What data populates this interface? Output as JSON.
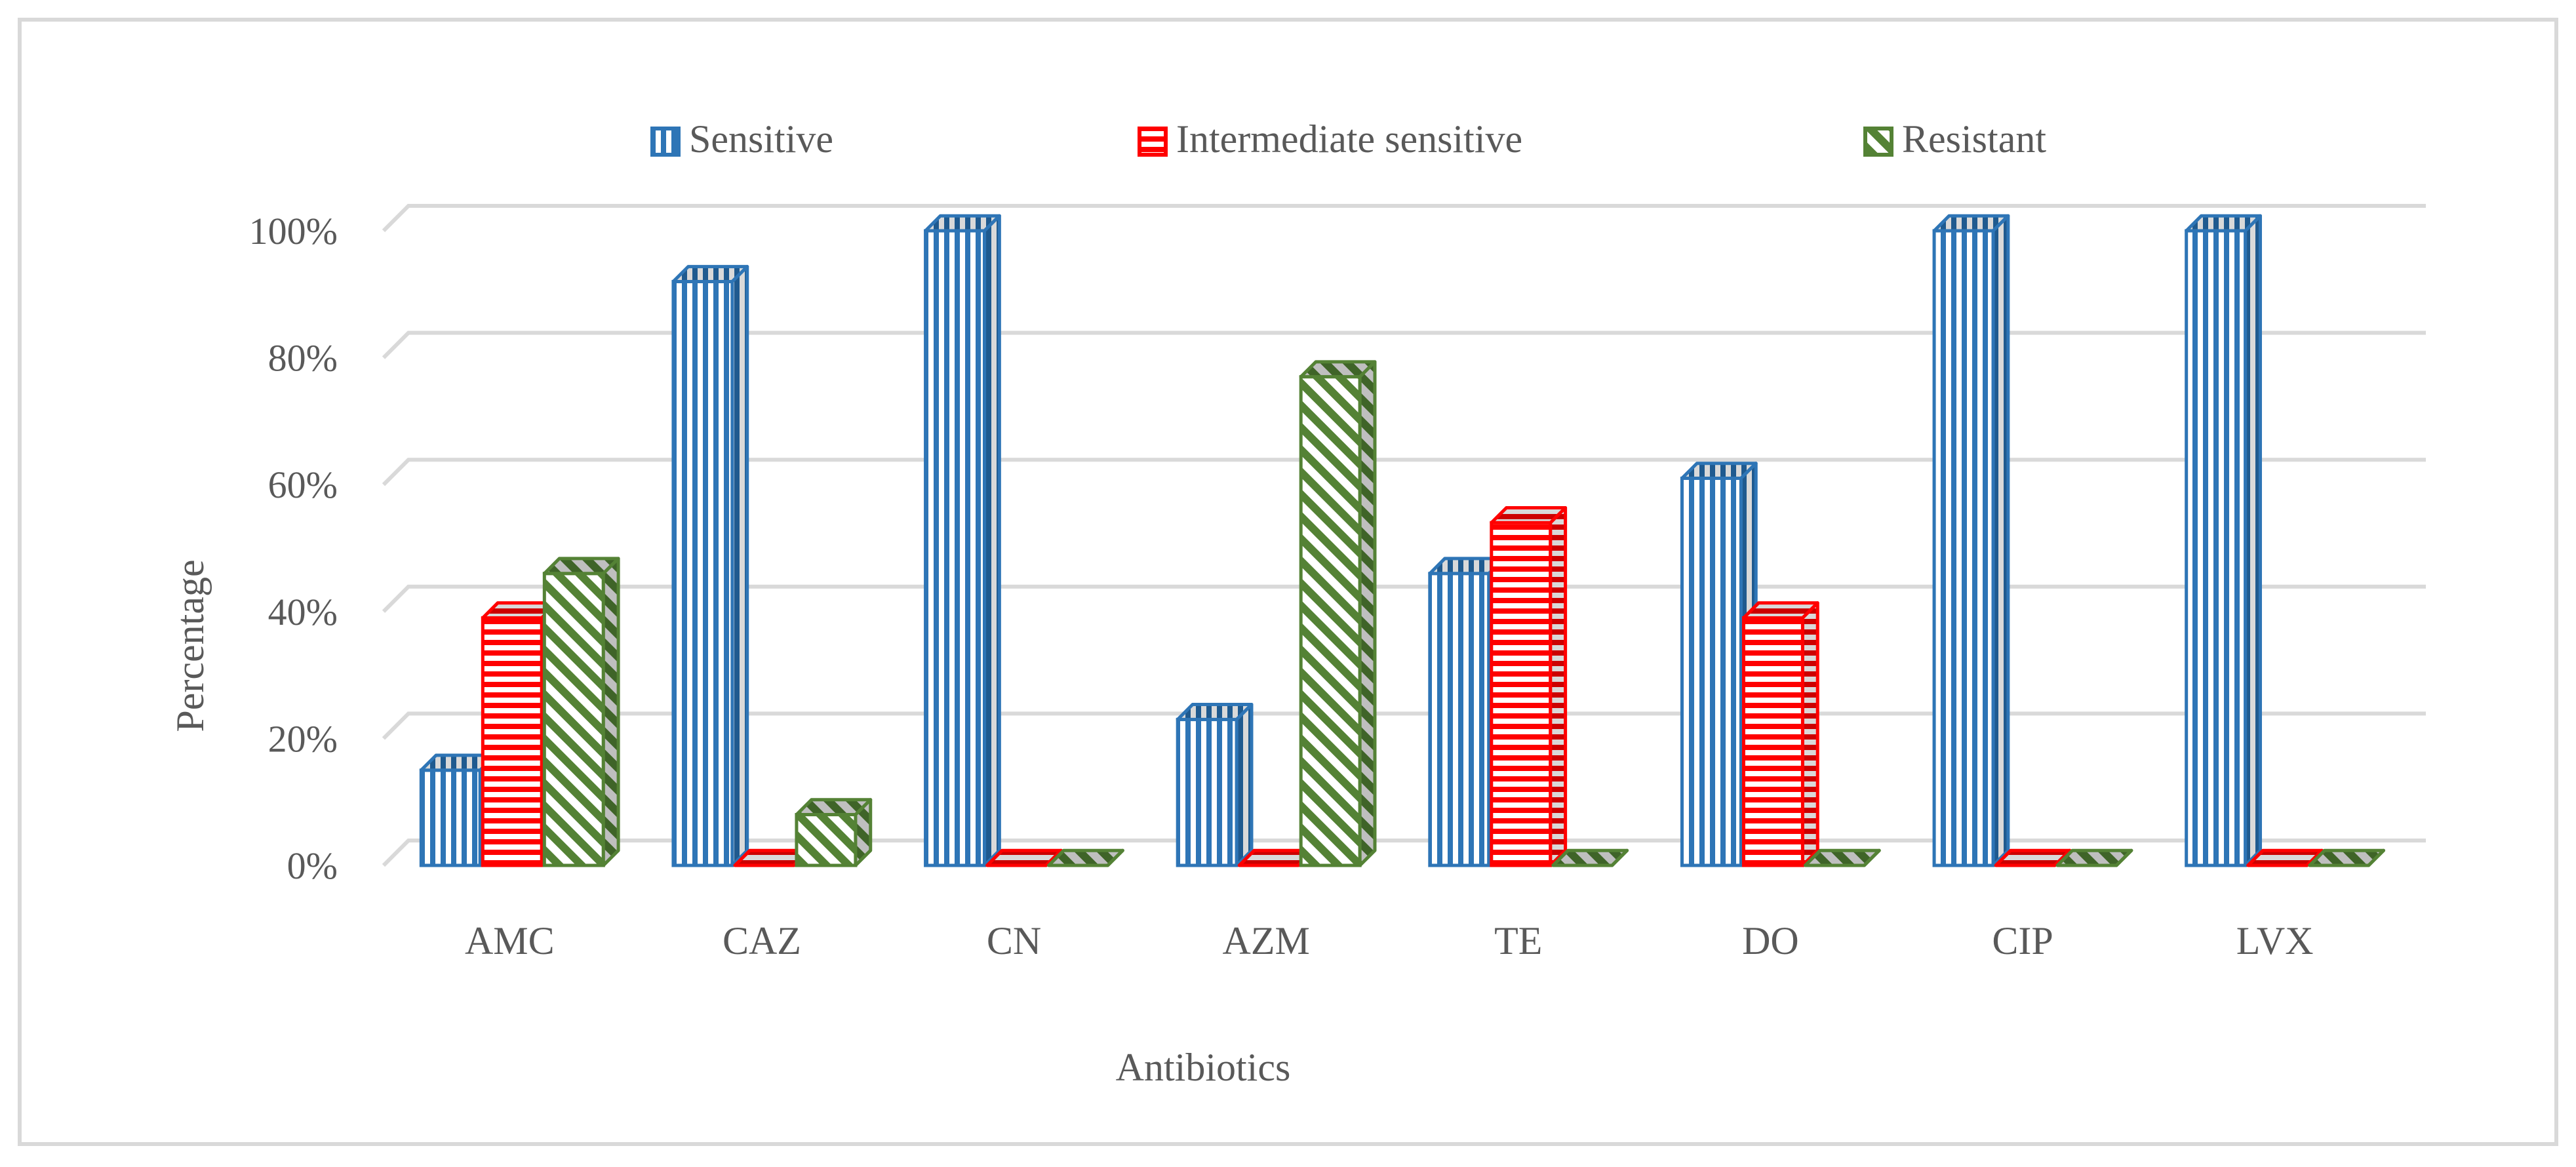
{
  "chart_data": {
    "type": "bar",
    "title": "",
    "xlabel": "Antibiotics",
    "ylabel": "Percentage",
    "categories": [
      "AMC",
      "CAZ",
      "CN",
      "AZM",
      "TE",
      "DO",
      "CIP",
      "LVX"
    ],
    "series": [
      {
        "name": "Sensitive",
        "values": [
          15,
          92,
          100,
          23,
          46,
          61,
          100,
          100
        ],
        "color": "#2E75B6",
        "pattern": "vertical-stripes"
      },
      {
        "name": "Intermediate sensitive",
        "values": [
          39,
          0,
          0,
          0,
          54,
          39,
          0,
          0
        ],
        "color": "#FF0000",
        "pattern": "horizontal-stripes"
      },
      {
        "name": "Resistant",
        "values": [
          46,
          8,
          0,
          77,
          0,
          0,
          0,
          0
        ],
        "color": "#548235",
        "pattern": "diagonal-stripes"
      }
    ],
    "ylim": [
      0,
      100
    ],
    "yticks": [
      "0%",
      "20%",
      "40%",
      "60%",
      "80%",
      "100%"
    ],
    "grid": true,
    "legend_position": "top",
    "bar_style": "3d"
  }
}
